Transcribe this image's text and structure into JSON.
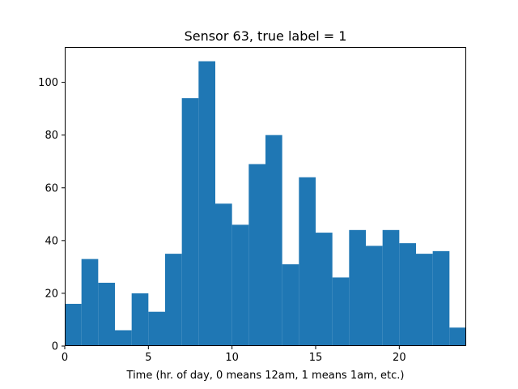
{
  "chart_data": {
    "type": "bar",
    "title": "Sensor 63, true label = 1",
    "xlabel": "Time (hr. of day, 0 means 12am, 1 means 1am, etc.)",
    "ylabel": "",
    "bin_width_hours": 1,
    "x": [
      0,
      1,
      2,
      3,
      4,
      5,
      6,
      7,
      8,
      9,
      10,
      11,
      12,
      13,
      14,
      15,
      16,
      17,
      18,
      19,
      20,
      21,
      22,
      23
    ],
    "values": [
      16,
      33,
      24,
      6,
      20,
      13,
      35,
      94,
      108,
      54,
      46,
      69,
      80,
      31,
      64,
      43,
      26,
      44,
      38,
      44,
      39,
      35,
      36,
      7
    ],
    "xlim": [
      0,
      24
    ],
    "ylim": [
      0,
      113.4
    ],
    "xticks": [
      0,
      5,
      10,
      15,
      20
    ],
    "yticks": [
      0,
      20,
      40,
      60,
      80,
      100
    ],
    "color": "#1f77b4",
    "grid": false
  }
}
